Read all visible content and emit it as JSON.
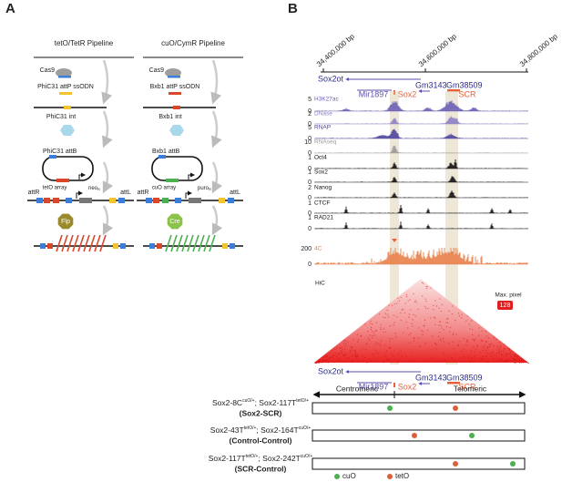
{
  "panels": {
    "a": "A",
    "b": "B"
  },
  "pipelines": [
    {
      "title": "tetO/TetR Pipeline",
      "nuclease": "Cas9",
      "donor": "PhiC31 attP ssODN",
      "integrase": "PhiC31 int",
      "plasmid": "PhiC31 attB",
      "array": "tetO array",
      "marker": "neo",
      "marker_sub": "R",
      "left_site": "attR",
      "right_site": "attL",
      "recombinase": "Flp"
    },
    {
      "title": "cuO/CymR Pipeline",
      "nuclease": "Cas9",
      "donor": "Bxb1 attP ssODN",
      "integrase": "Bxb1 int",
      "plasmid": "Bxb1 attB",
      "array": "cuO array",
      "marker": "puro",
      "marker_sub": "R",
      "left_site": "attR",
      "right_site": "attL",
      "recombinase": "Cre"
    }
  ],
  "coordinates": [
    "34,400,000 bp",
    "34,600,000 bp",
    "34,800,000 bp"
  ],
  "genes": {
    "sox2ot": "Sox2ot",
    "mir": "Mir1897",
    "sox2": "Sox2",
    "gm1": "Gm3143",
    "gm2": "Gm38509",
    "scr": "SCR"
  },
  "tracks": [
    {
      "name": "H3K27ac",
      "max": 5,
      "min": 0
    },
    {
      "name": "DNase",
      "max": 2,
      "min": 0
    },
    {
      "name": "RNAP",
      "max": 5,
      "min": 0
    },
    {
      "name": "RNAseq",
      "max": 10,
      "min": 0
    },
    {
      "name": "Oct4",
      "max": 1,
      "min": 0
    },
    {
      "name": "Sox2",
      "max": 1,
      "min": 0
    },
    {
      "name": "Nanog",
      "max": 2,
      "min": 0
    },
    {
      "name": "CTCF",
      "max": 1,
      "min": 0
    },
    {
      "name": "RAD21",
      "max": 1,
      "min": 0
    },
    {
      "name": "4C",
      "max": 200,
      "min": 0
    }
  ],
  "hic": {
    "label": "HiC",
    "max_label": "Max. pixel",
    "max_value": 128
  },
  "orientation": {
    "left": "Centromeric",
    "right": "Telomeric"
  },
  "constructs": [
    {
      "label": [
        "Sox2-8C",
        "cuO/+",
        "; Sox2-117T",
        "tetO/+"
      ],
      "name": "(Sox2-SCR)"
    },
    {
      "label": [
        "Sox2-43T",
        "tetO/+",
        "; Sox2-164T",
        "cuO/+"
      ],
      "name": "(Control-Control)"
    },
    {
      "label": [
        "Sox2-117T",
        "tetO/+",
        "; Sox2-242T",
        "cuO/+"
      ],
      "name": "(SCR-Control)"
    }
  ],
  "legend": [
    "cuO",
    "tetO"
  ]
}
